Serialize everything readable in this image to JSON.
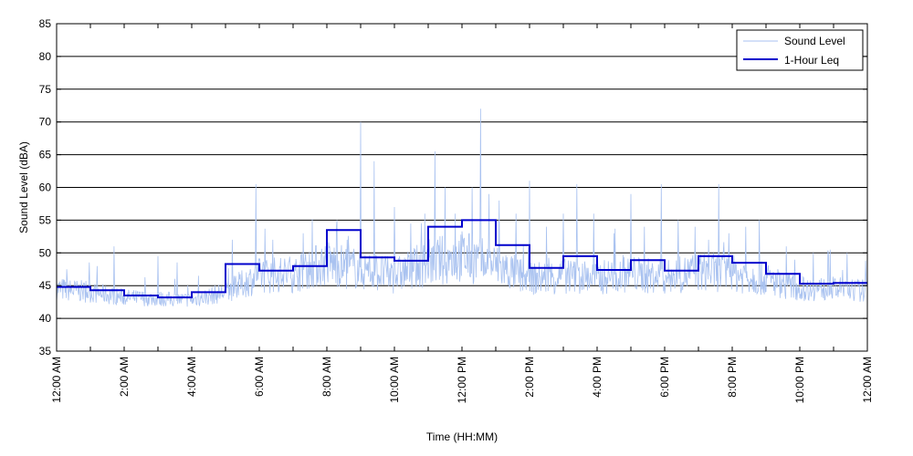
{
  "chart_data": {
    "type": "line",
    "xlabel": "Time (HH:MM)",
    "ylabel": "Sound Level (dBA)",
    "xlim": [
      0,
      24
    ],
    "ylim": [
      35,
      85
    ],
    "y_ticks": [
      35,
      40,
      45,
      50,
      55,
      60,
      65,
      70,
      75,
      80,
      85
    ],
    "x_tick_labels": [
      {
        "hour": 0,
        "label": "12:00 AM"
      },
      {
        "hour": 2,
        "label": "2:00 AM"
      },
      {
        "hour": 4,
        "label": "4:00 AM"
      },
      {
        "hour": 6,
        "label": "6:00 AM"
      },
      {
        "hour": 8,
        "label": "8:00 AM"
      },
      {
        "hour": 10,
        "label": "10:00 AM"
      },
      {
        "hour": 12,
        "label": "12:00 PM"
      },
      {
        "hour": 14,
        "label": "2:00 PM"
      },
      {
        "hour": 16,
        "label": "4:00 PM"
      },
      {
        "hour": 18,
        "label": "6:00 PM"
      },
      {
        "hour": 20,
        "label": "8:00 PM"
      },
      {
        "hour": 22,
        "label": "10:00 PM"
      },
      {
        "hour": 24,
        "label": "12:00 AM"
      }
    ],
    "grid": "horizontal",
    "legend_position": "top-right",
    "series": [
      {
        "name": "Sound Level",
        "color": "#a9c2f0",
        "style": "thin-line",
        "baseline": [
          [
            0,
            44.5
          ],
          [
            1,
            44
          ],
          [
            2,
            43.2
          ],
          [
            3,
            43
          ],
          [
            4,
            42.8
          ],
          [
            5,
            44
          ],
          [
            6,
            46.5
          ],
          [
            7,
            46.8
          ],
          [
            8,
            48.5
          ],
          [
            9,
            47.5
          ],
          [
            10,
            46.5
          ],
          [
            11,
            48.5
          ],
          [
            12,
            49.5
          ],
          [
            13,
            48
          ],
          [
            14,
            46
          ],
          [
            15,
            46.5
          ],
          [
            16,
            46.2
          ],
          [
            17,
            46.8
          ],
          [
            18,
            46.2
          ],
          [
            19,
            47.2
          ],
          [
            20,
            46.8
          ],
          [
            21,
            46
          ],
          [
            22,
            44.5
          ],
          [
            23,
            44.5
          ],
          [
            24,
            44.2
          ]
        ],
        "peaks": [
          [
            0.3,
            47.5
          ],
          [
            1.2,
            48
          ],
          [
            1.7,
            51
          ],
          [
            3.0,
            49.5
          ],
          [
            4.2,
            46.5
          ],
          [
            5.2,
            52
          ],
          [
            5.9,
            60.5
          ],
          [
            6.4,
            52
          ],
          [
            7.3,
            53
          ],
          [
            8.3,
            55
          ],
          [
            8.6,
            52
          ],
          [
            9.0,
            70
          ],
          [
            9.4,
            64
          ],
          [
            10.0,
            57
          ],
          [
            10.9,
            56
          ],
          [
            11.2,
            65.5
          ],
          [
            11.5,
            60
          ],
          [
            11.8,
            56
          ],
          [
            12.3,
            60
          ],
          [
            12.55,
            72
          ],
          [
            12.8,
            59
          ],
          [
            13.1,
            58
          ],
          [
            13.6,
            56
          ],
          [
            14.0,
            61
          ],
          [
            14.5,
            54
          ],
          [
            15.0,
            56
          ],
          [
            15.4,
            60.5
          ],
          [
            15.9,
            56
          ],
          [
            16.5,
            53
          ],
          [
            17.0,
            59
          ],
          [
            17.4,
            54
          ],
          [
            17.9,
            60.5
          ],
          [
            18.4,
            55
          ],
          [
            18.9,
            54
          ],
          [
            19.3,
            52
          ],
          [
            19.6,
            60.5
          ],
          [
            19.9,
            53
          ],
          [
            20.4,
            54
          ],
          [
            20.8,
            55
          ],
          [
            21.6,
            51
          ],
          [
            22.4,
            50
          ],
          [
            22.9,
            50.5
          ],
          [
            23.4,
            50
          ]
        ]
      },
      {
        "name": "1-Hour Leq",
        "color": "#0000cc",
        "style": "step",
        "values": [
          {
            "start": 0,
            "value": 44.8
          },
          {
            "start": 1,
            "value": 44.3
          },
          {
            "start": 2,
            "value": 43.5
          },
          {
            "start": 3,
            "value": 43.2
          },
          {
            "start": 4,
            "value": 44.0
          },
          {
            "start": 5,
            "value": 48.3
          },
          {
            "start": 6,
            "value": 47.3
          },
          {
            "start": 7,
            "value": 48.0
          },
          {
            "start": 8,
            "value": 53.5
          },
          {
            "start": 9,
            "value": 49.3
          },
          {
            "start": 10,
            "value": 48.8
          },
          {
            "start": 11,
            "value": 54.0
          },
          {
            "start": 12,
            "value": 55.0
          },
          {
            "start": 13,
            "value": 51.2
          },
          {
            "start": 14,
            "value": 47.7
          },
          {
            "start": 15,
            "value": 49.5
          },
          {
            "start": 16,
            "value": 47.4
          },
          {
            "start": 17,
            "value": 48.9
          },
          {
            "start": 18,
            "value": 47.3
          },
          {
            "start": 19,
            "value": 49.5
          },
          {
            "start": 20,
            "value": 48.5
          },
          {
            "start": 21,
            "value": 46.8
          },
          {
            "start": 22,
            "value": 45.3
          },
          {
            "start": 23,
            "value": 45.4
          }
        ]
      }
    ]
  }
}
